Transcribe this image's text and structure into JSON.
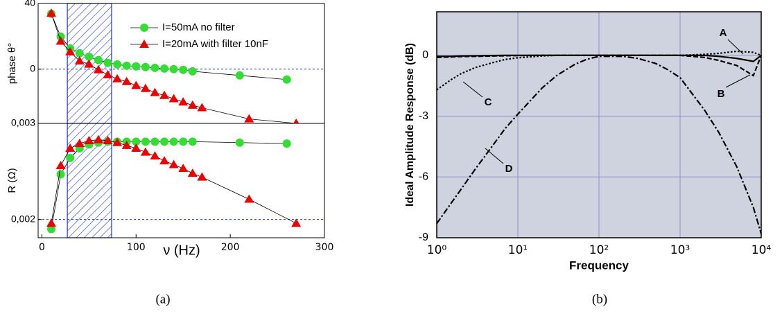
{
  "chart_data": [
    {
      "type": "line",
      "ylabel": "phase θ°",
      "xlim": [
        -4,
        300
      ],
      "ylim": [
        -33,
        40
      ],
      "yticks": [
        40,
        0
      ],
      "hline": 0,
      "highlight_range": [
        27,
        74
      ],
      "legend": "upper right",
      "series": [
        {
          "name": "I=50mA no filter",
          "color": "#33dd33",
          "marker": "circle",
          "x": [
            10,
            20,
            30,
            40,
            50,
            60,
            70,
            80,
            90,
            100,
            110,
            120,
            130,
            140,
            150,
            160,
            210,
            260
          ],
          "values": [
            33.7,
            19.8,
            12.6,
            9.7,
            7.6,
            5.5,
            3.8,
            2.9,
            2.1,
            1.7,
            1.3,
            0.8,
            0.4,
            0,
            -0.4,
            -1.3,
            -3.8,
            -6.3
          ]
        },
        {
          "name": "I=20mA with filter 10nF",
          "color": "#ee0000",
          "marker": "triangle",
          "x": [
            10,
            20,
            30,
            40,
            50,
            60,
            70,
            80,
            90,
            100,
            110,
            120,
            130,
            140,
            150,
            160,
            170,
            220,
            270
          ],
          "values": [
            34,
            17,
            10.5,
            5,
            3,
            -0.4,
            -3.4,
            -5.9,
            -7.6,
            -10,
            -11.8,
            -14.3,
            -16,
            -18,
            -20,
            -22,
            -23.5,
            -30.3,
            -33
          ]
        }
      ]
    },
    {
      "type": "line",
      "ylabel": "R (Ω)",
      "xlabel": "ν (Hz)",
      "caption": "(a)",
      "xlim": [
        -4,
        300
      ],
      "xticks": [
        0,
        100,
        200,
        300
      ],
      "ylim": [
        0.00181,
        0.003
      ],
      "yticks": [
        {
          "value": 0.002,
          "label": "0,002"
        },
        {
          "value": 0.003,
          "label": "0,003"
        }
      ],
      "hline": 0.002,
      "highlight_range": [
        27,
        74
      ],
      "series": [
        {
          "color": "#33dd33",
          "marker": "circle",
          "x": [
            10,
            20,
            30,
            40,
            50,
            60,
            70,
            80,
            90,
            100,
            110,
            120,
            130,
            140,
            150,
            160,
            210,
            260
          ],
          "values": [
            0.0019,
            0.00247,
            0.00264,
            0.00274,
            0.00278,
            0.0028,
            0.00281,
            0.00281,
            0.00281,
            0.00281,
            0.00281,
            0.00281,
            0.00281,
            0.00281,
            0.00281,
            0.00281,
            0.0028,
            0.00279
          ]
        },
        {
          "color": "#ee0000",
          "marker": "triangle",
          "x": [
            10,
            20,
            30,
            40,
            50,
            60,
            70,
            80,
            90,
            100,
            110,
            120,
            130,
            140,
            150,
            160,
            170,
            220,
            270
          ],
          "values": [
            0.00196,
            0.00256,
            0.00274,
            0.00279,
            0.00282,
            0.00283,
            0.00282,
            0.0028,
            0.00277,
            0.00274,
            0.0027,
            0.00266,
            0.00261,
            0.00257,
            0.00253,
            0.00248,
            0.00244,
            0.00221,
            0.00196
          ]
        }
      ]
    },
    {
      "type": "line",
      "xscale": "log",
      "ylabel": "Ideal Amplitude Response (dB)",
      "xlabel": "Frequency",
      "caption": "(b)",
      "background": "#cfd3df",
      "grid": true,
      "grid_color": "#8c90c4",
      "xlim": [
        1,
        10000
      ],
      "xticks": [
        {
          "value": 1,
          "label": "10⁰"
        },
        {
          "value": 10,
          "label": "10¹"
        },
        {
          "value": 100,
          "label": "10²"
        },
        {
          "value": 1000,
          "label": "10³"
        },
        {
          "value": 10000,
          "label": "10⁴"
        }
      ],
      "ylim": [
        -9,
        2.15
      ],
      "yticks": [
        0,
        -3,
        -6,
        -9
      ],
      "annotations": [
        "A",
        "B",
        "C",
        "D"
      ],
      "x": [
        1,
        1.5,
        2,
        3,
        5,
        7,
        10,
        20,
        30,
        50,
        70,
        100,
        200,
        300,
        500,
        700,
        1000,
        2000,
        3000,
        5000,
        8000,
        10000
      ],
      "series": [
        {
          "color": "#000000",
          "dash": "solid",
          "values": [
            -0.05,
            -0.05,
            -0.03,
            -0.02,
            -0.01,
            0,
            0,
            0,
            0,
            0,
            0,
            0,
            0,
            0,
            0,
            0,
            0,
            0,
            -0.05,
            -0.15,
            -0.3,
            0
          ]
        },
        {
          "color": "#000000",
          "dash": "dotted",
          "values": [
            -1.7,
            -1.2,
            -0.9,
            -0.6,
            -0.35,
            -0.2,
            -0.12,
            -0.03,
            0,
            0,
            0,
            0,
            0,
            0,
            0,
            0,
            0,
            0.05,
            0.1,
            0.2,
            0.15,
            0
          ]
        },
        {
          "color": "#000000",
          "dash": "dashed",
          "values": [
            -0.1,
            -0.08,
            -0.06,
            -0.05,
            -0.03,
            -0.02,
            -0.01,
            0,
            0,
            0,
            0,
            0,
            0,
            0,
            0,
            0,
            0,
            -0.1,
            -0.25,
            -0.5,
            -1.0,
            0
          ]
        },
        {
          "color": "#000000",
          "dash": "dashdot",
          "values": [
            -8.3,
            -7.3,
            -6.6,
            -5.6,
            -4.4,
            -3.6,
            -2.9,
            -1.6,
            -1.0,
            -0.45,
            -0.2,
            -0.05,
            -0.05,
            -0.15,
            -0.4,
            -0.7,
            -1.1,
            -2.7,
            -3.8,
            -5.5,
            -7.5,
            -8.8
          ]
        }
      ]
    }
  ]
}
